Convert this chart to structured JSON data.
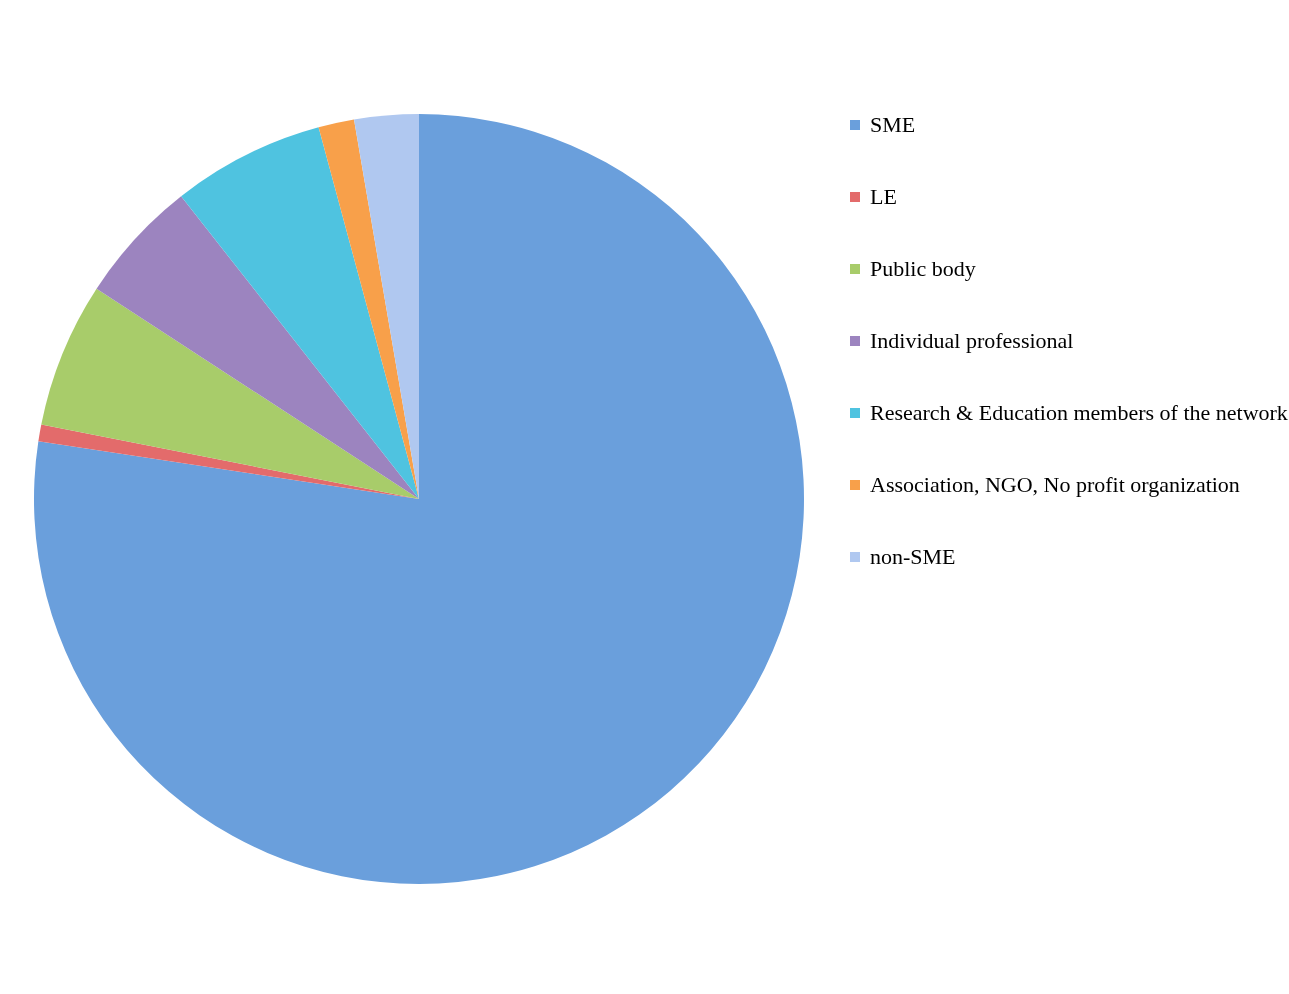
{
  "chart_data": {
    "type": "pie",
    "categories": [
      "SME",
      "LE",
      "Public body",
      "Individual professional",
      "Research & Education members of the network",
      "Association, NGO, No profit organization",
      "non-SME"
    ],
    "values": [
      77.4,
      0.7,
      6.1,
      5.2,
      6.4,
      1.5,
      2.7
    ],
    "colors": [
      "#6a9fdc",
      "#e36b6b",
      "#a8cc6a",
      "#9c84bf",
      "#4fc3e0",
      "#f8a04a",
      "#b0c8f0"
    ],
    "legend": "right"
  }
}
